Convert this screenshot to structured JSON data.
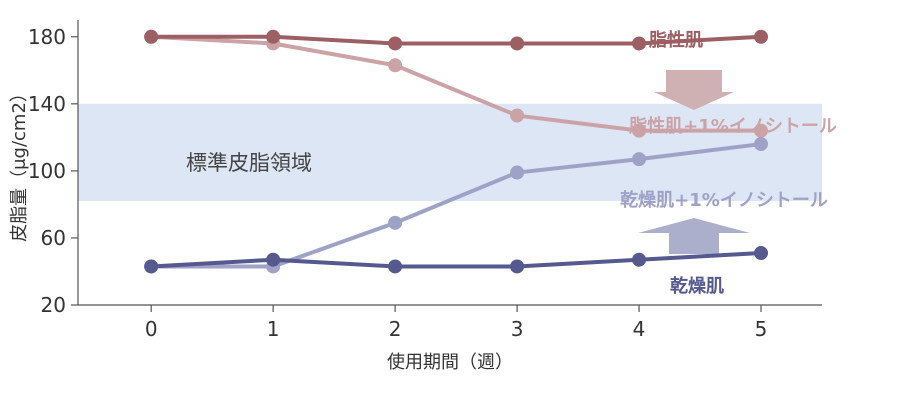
{
  "chart_data": {
    "type": "line",
    "title": "",
    "xlabel": "使用期間（週）",
    "ylabel": "皮脂量（μg/cm2）",
    "x": [
      0,
      1,
      2,
      3,
      4,
      5
    ],
    "xlim": [
      -0.6,
      5.5
    ],
    "ylim": [
      20,
      190
    ],
    "yticks": [
      20,
      60,
      100,
      140,
      180
    ],
    "grid": false,
    "normal_range": {
      "label": "標準皮脂領域",
      "y": [
        82,
        140
      ],
      "color": "#dce6f5"
    },
    "series": [
      {
        "name": "脂性肌",
        "values": [
          180,
          180,
          176,
          176,
          176,
          180
        ],
        "color": "#9b5f64"
      },
      {
        "name": "脂性肌+1%イノシトール",
        "values": [
          180,
          176,
          163,
          133,
          124,
          124
        ],
        "color": "#cba3a6"
      },
      {
        "name": "乾燥肌+1%イノシトール",
        "values": [
          43,
          43,
          69,
          99,
          107,
          116
        ],
        "color": "#9ea2c6"
      },
      {
        "name": "乾燥肌",
        "values": [
          43,
          47,
          43,
          43,
          47,
          51
        ],
        "color": "#55598d"
      }
    ],
    "arrows": [
      {
        "direction": "down",
        "color": "#cfb0b3"
      },
      {
        "direction": "up",
        "color": "#acafcc"
      }
    ]
  }
}
